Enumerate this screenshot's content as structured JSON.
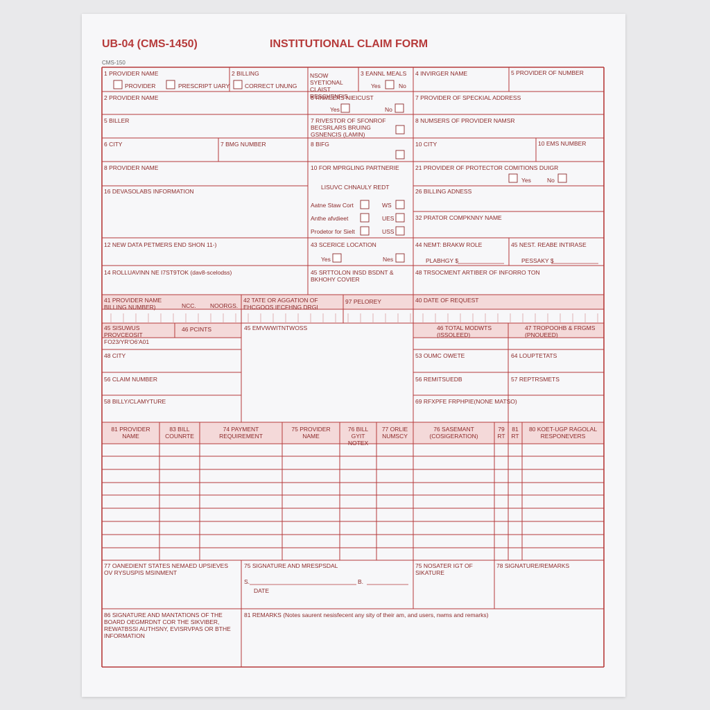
{
  "header": {
    "code": "UB-04 (CMS-1450)",
    "title": "INSTITUTIONAL CLAIM FORM",
    "form_no": "CMS-150"
  },
  "fields": [
    "1 PROVIDER NAME",
    "PROVIDER",
    "PRESCRIPT UARY",
    "CORRECT UNUNG",
    "2 BILLING",
    "NSOW SYETIONAL CLAIST RESCHENFIS",
    "3 EANNL MEALS",
    "Yes",
    "No",
    "4 INVIRGER NAME",
    "5 PROVIDER OF NUMBER",
    "2 PROVIDER NAME",
    "8 RNMLERS NIEICUST",
    "Yes",
    "No",
    "7 PROVIDER OF SPECKIAL ADDRESS",
    "5 BILLER",
    "7 RIVESTOR OF SFONROF BECSRLARS BRUING GSNENCIS (LAMIN)",
    "8 NUMSERS OF PROVIDER NAMSR",
    "6 CITY",
    "7 BMG NUMBER",
    "8 BIFG",
    "10 CITY",
    "10 EMS NUMBER",
    "8 PROVIDER NAME",
    "10 FOR MPRGLING PARTNERIE",
    "21 PROVIDER OF PROTECTOR COMITIONS DUIGR",
    "Yes",
    "No",
    "16 DEVASOLABS INFORMATION",
    "LISUVC CHNAULY REDT",
    "26 BILLING ADNESS",
    "Aatne Staw Cort",
    "WS",
    "Anthe afvdieet",
    "UES",
    "Prodetor for Sielt",
    "USS",
    "32 PRATOR COMPKNNY NAME",
    "12 NEW DATA PETMERS END SHON 11-)",
    "43 SCERICE LOCATION",
    "Yes",
    "Nes",
    "44 NEMT: BRAKW ROLE",
    "PLABHGY $",
    "45 NEST. REABE INTIRASE",
    "PESSAKY $",
    "14 ROLLUAVINN NE I7ST9TOK (dav8-scelodss)",
    "45 SRTTOLON INSD BSDNT & BKHOHY COVIER",
    "48 TRSOCMENT ARTIBER OF INFORRO TON",
    "41 PROVIDER NAME BILLING NUMBER)",
    "NCC.",
    "NOORGS.",
    "42 TATE OR AGGATION OF EHCGOOS IECFHNG DRGI",
    "97 PELOREY",
    "40 DATE OF REQUEST",
    "45 SISUWUS PROVCEOSIT FO23/YR'O6'A01",
    "46 PCINTS",
    "45 EMVWWITNTWOSS",
    "46 TOTAL MODWTS (ISSOLEED)",
    "47 TROPOOHB & FRGMS (PNOUEED)",
    "48 CITY",
    "53 OUMC OWETE",
    "64 LOUPTETATS",
    "56 CLAIM NUMBER",
    "56 REMITSUEDB",
    "57 REPTRSMETS",
    "58 BILLY/CLAMYTURE",
    "69 RFXPFE FRPHPIE(NONE MATSO)",
    "77 OANEDIENT STATES NEMAED UPSIEVES OV RYSUSPIS MSINMENT",
    "75 SIGNATURE AND MRESPSDAL",
    "S.",
    "B.",
    "DATE",
    "75 NOSATER IGT OF SIKATURE",
    "78 SIGNATURE/REMARKS",
    "86 SIGNATURE AND MANTATIONS OF THE BOARD OEGMRDNT COR THE SIKVIBER, REWATBSSI AUTHSNY, EVISRVPAS OR BTHE INFORMATION",
    "81 REMARKS (Notes saurent nesisfecent any sity of their am, and users, nwms and remarks)"
  ],
  "table": {
    "headers": [
      "81 PROVIDER NAME",
      "83 BILL COUNRTE",
      "74 PAYMENT REQUIREMENT",
      "75 PROVIDER NAME",
      "76 BILL GYIT NOTEX",
      "77 ORLIE NUMSCY",
      "76 SASEMANT (COSIGERATION)",
      "79 RT",
      "81 RT",
      "80 KOET-UGP RAGOLAL RESPONEVERS"
    ]
  }
}
